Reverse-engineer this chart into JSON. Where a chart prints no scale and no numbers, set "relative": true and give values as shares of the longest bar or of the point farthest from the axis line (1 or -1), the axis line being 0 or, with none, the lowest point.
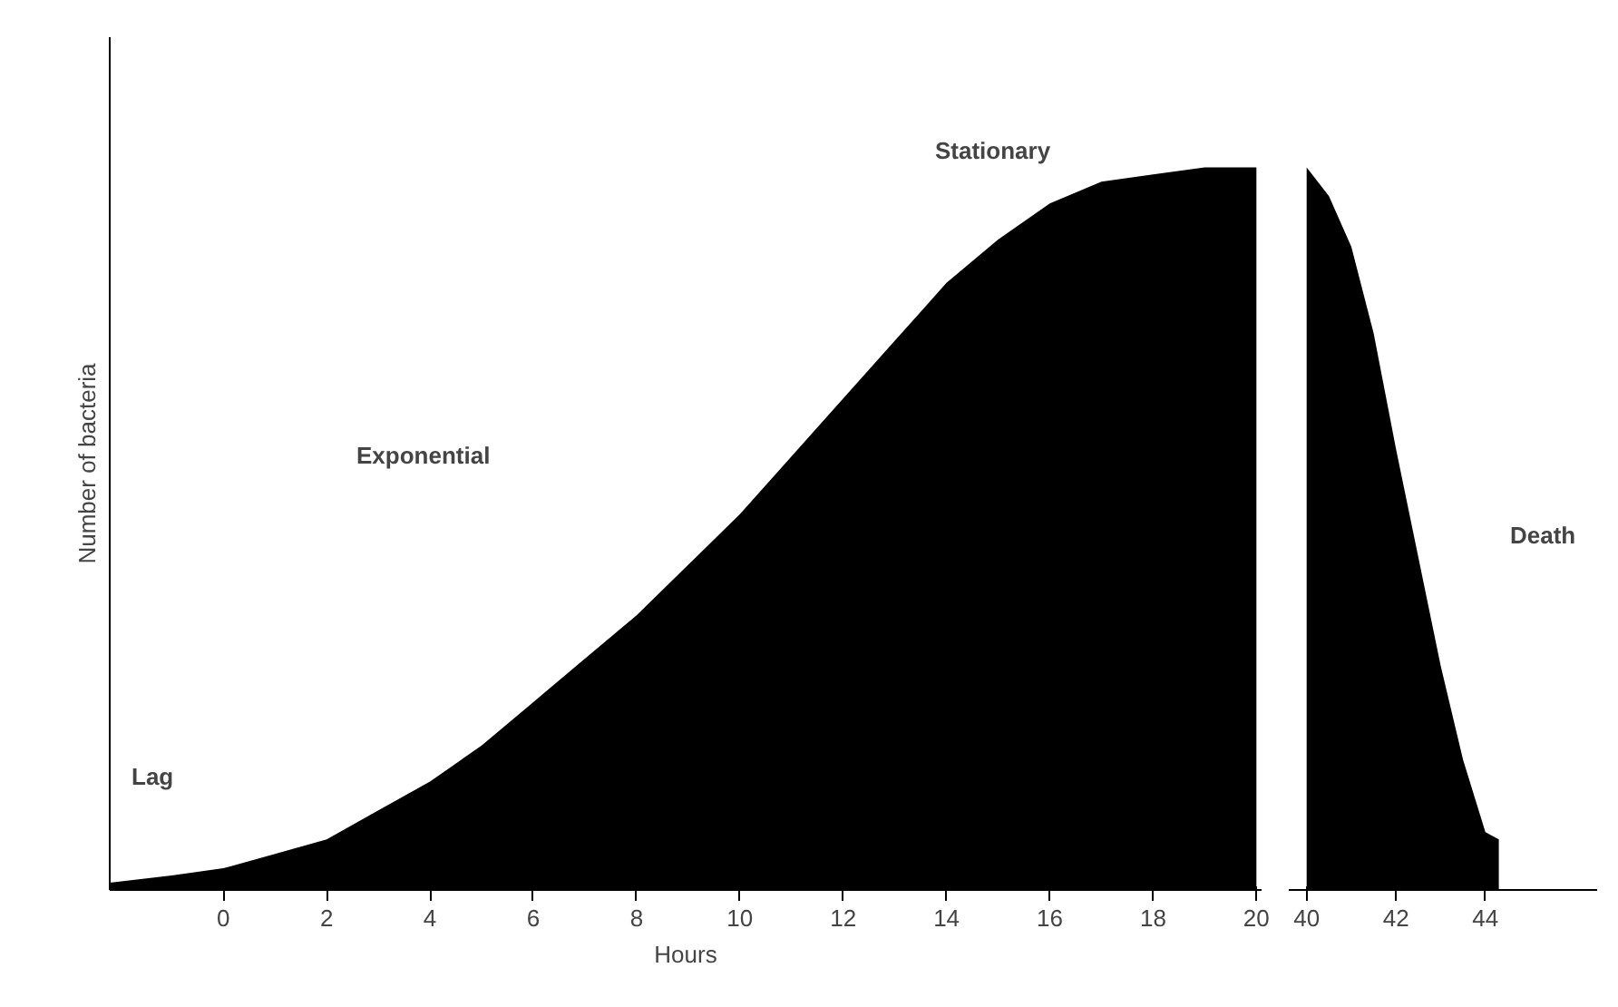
{
  "chart_data": [
    {
      "type": "area",
      "relative": true,
      "ylabel": "Number of bacteria",
      "xlabel": "Hours",
      "color": "#000000",
      "grid": false,
      "x": [
        -2.2,
        -1,
        0,
        1,
        2,
        3,
        4,
        5,
        6,
        7,
        8,
        9,
        10,
        11,
        12,
        13,
        14,
        15,
        16,
        17,
        18,
        19,
        20
      ],
      "values": [
        0.01,
        0.02,
        0.03,
        0.05,
        0.07,
        0.11,
        0.15,
        0.2,
        0.26,
        0.32,
        0.38,
        0.45,
        0.52,
        0.6,
        0.68,
        0.76,
        0.84,
        0.9,
        0.95,
        0.98,
        0.99,
        1,
        1
      ],
      "xlim": [
        -2.2,
        20.1
      ],
      "xticks": [
        0,
        2,
        4,
        6,
        8,
        10,
        12,
        14,
        16,
        18,
        20
      ],
      "annotations": [
        "Lag",
        "Exponential",
        "Stationary"
      ]
    },
    {
      "type": "area",
      "relative": true,
      "color": "#000000",
      "grid": false,
      "x": [
        40,
        40.5,
        41,
        41.5,
        42,
        42.5,
        43,
        43.5,
        44,
        44.3
      ],
      "values": [
        1,
        0.96,
        0.89,
        0.77,
        0.61,
        0.46,
        0.31,
        0.18,
        0.08,
        0.07
      ],
      "xlim": [
        39.6,
        46.5
      ],
      "xticks": [
        40,
        42,
        44
      ],
      "annotations": [
        "Death"
      ]
    }
  ]
}
